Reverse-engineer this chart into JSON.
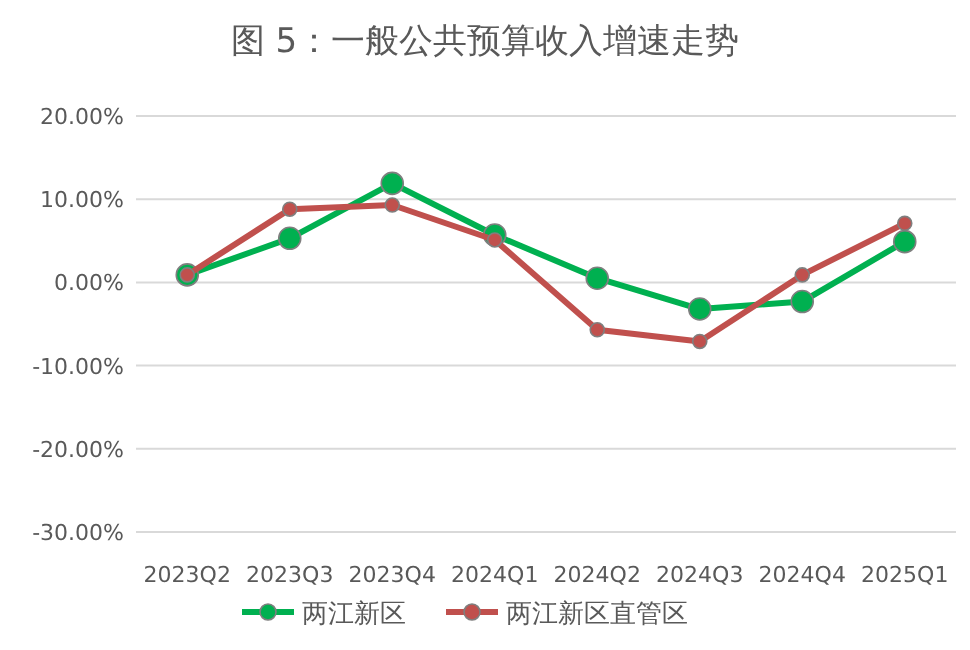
{
  "chart_data": {
    "type": "line",
    "title": "图 5：一般公共预算收入增速走势",
    "categories": [
      "2023Q2",
      "2023Q3",
      "2023Q4",
      "2024Q1",
      "2024Q2",
      "2024Q3",
      "2024Q4",
      "2025Q1"
    ],
    "series": [
      {
        "name": "两江新区",
        "color": "#00b050",
        "values": [
          0.9,
          5.3,
          11.9,
          5.7,
          0.5,
          -3.2,
          -2.3,
          4.9
        ]
      },
      {
        "name": "两江新区直管区",
        "color": "#c0504d",
        "values": [
          0.9,
          8.8,
          9.3,
          5.1,
          -5.7,
          -7.1,
          0.9,
          7.1
        ]
      }
    ],
    "ylim": [
      -30,
      20
    ],
    "yticks": [
      {
        "value": -30,
        "label": "-30.00%"
      },
      {
        "value": -20,
        "label": "-20.00%"
      },
      {
        "value": -10,
        "label": "-10.00%"
      },
      {
        "value": 0,
        "label": "0.00%"
      },
      {
        "value": 10,
        "label": "10.00%"
      },
      {
        "value": 20,
        "label": "20.00%"
      }
    ],
    "grid": "y",
    "legend": "bottom",
    "marker": "circle",
    "line_style": "solid"
  }
}
